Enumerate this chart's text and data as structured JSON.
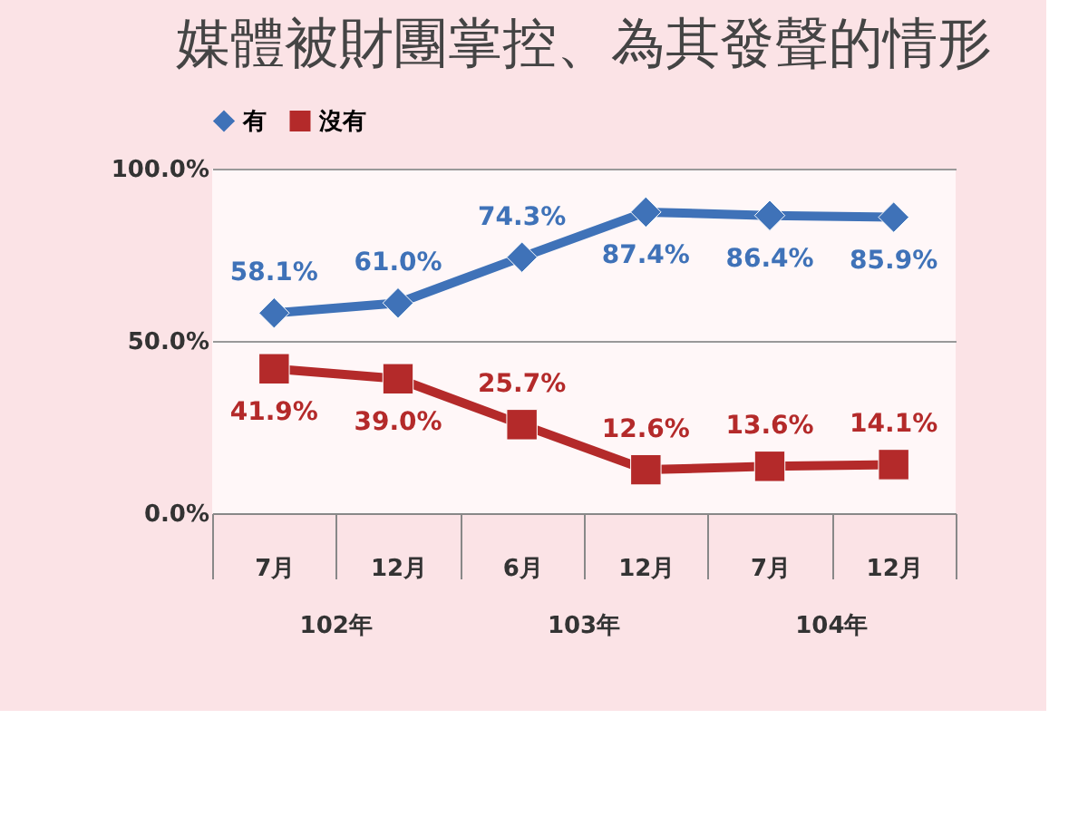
{
  "chart_data": {
    "type": "line",
    "title": "媒體被財團掌控、為其發聲的情形",
    "categories": [
      "7月",
      "12月",
      "6月",
      "12月",
      "7月",
      "12月"
    ],
    "annotations": [
      "102年",
      "103年",
      "104年"
    ],
    "series": [
      {
        "name": "有",
        "color": "#3f72b8",
        "marker": "diamond",
        "values": [
          58.1,
          61.0,
          74.3,
          87.4,
          86.4,
          85.9
        ],
        "value_labels": [
          "58.1%",
          "61.0%",
          "74.3%",
          "87.4%",
          "86.4%",
          "85.9%"
        ]
      },
      {
        "name": "沒有",
        "color": "#b42a2a",
        "marker": "square",
        "values": [
          41.9,
          39.0,
          25.7,
          12.6,
          13.6,
          14.1
        ],
        "value_labels": [
          "41.9%",
          "39.0%",
          "25.7%",
          "12.6%",
          "13.6%",
          "14.1%"
        ]
      }
    ],
    "ylim": [
      0,
      100
    ],
    "yticks": [
      {
        "value": 0,
        "label": "0.0%"
      },
      {
        "value": 50,
        "label": "50.0%"
      },
      {
        "value": 100,
        "label": "100.0%"
      }
    ],
    "grid": "y",
    "legend": "top"
  }
}
